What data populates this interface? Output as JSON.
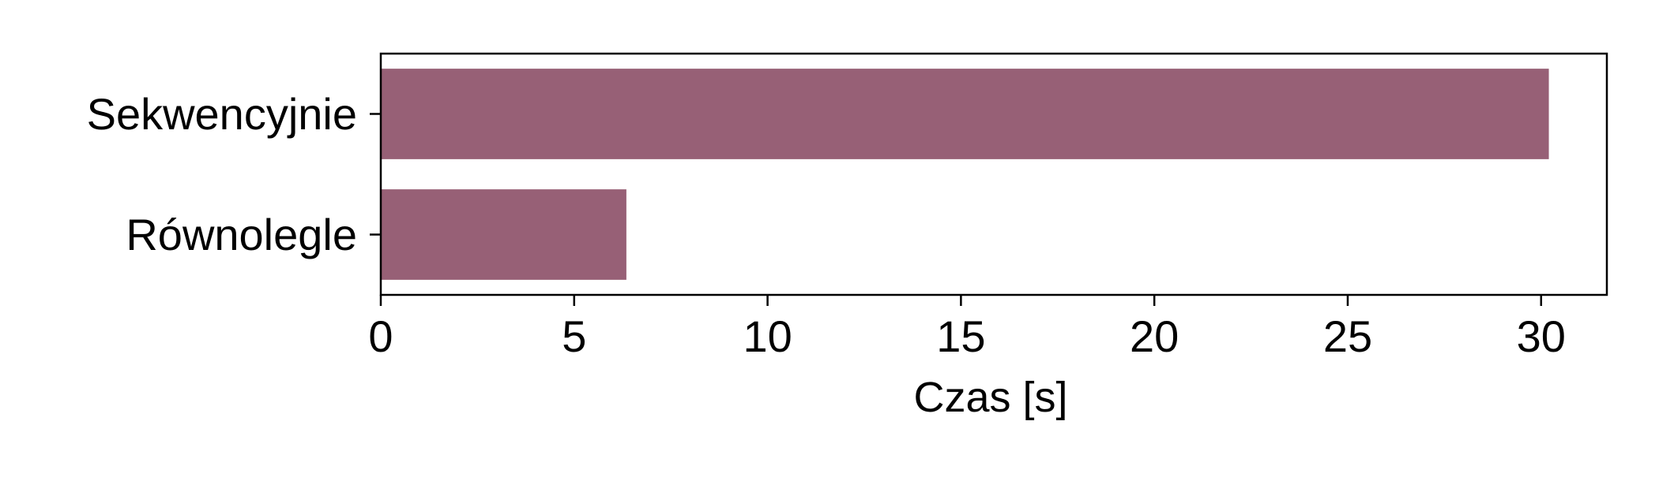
{
  "chart_data": {
    "type": "bar",
    "orientation": "horizontal",
    "categories": [
      "Sekwencyjnie",
      "Równolegle"
    ],
    "values": [
      30.2,
      6.35
    ],
    "title": "",
    "xlabel": "Czas [s]",
    "ylabel": "",
    "xlim": [
      0,
      31.7
    ],
    "xticks": [
      0,
      5,
      10,
      15,
      20,
      25,
      30
    ],
    "xtick_labels": [
      "0",
      "5",
      "10",
      "15",
      "20",
      "25",
      "30"
    ],
    "grid": false,
    "bar_color": "#976076"
  }
}
